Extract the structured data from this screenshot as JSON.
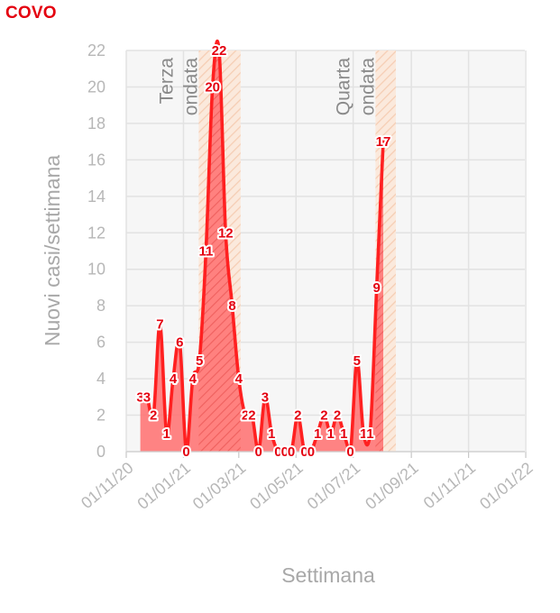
{
  "chart_data": {
    "type": "area",
    "title": "COVO",
    "xlabel": "Settimana",
    "ylabel": "Nuovi casi/settimana",
    "ylim": [
      0,
      22
    ],
    "yticks": [
      0,
      2,
      4,
      6,
      8,
      10,
      12,
      14,
      16,
      18,
      20,
      22
    ],
    "xlim": [
      "2020-11-01",
      "2021-12-31"
    ],
    "xticks": [
      {
        "date": "2020-11-01",
        "label": "01/11/20"
      },
      {
        "date": "2021-01-01",
        "label": "01/01/21"
      },
      {
        "date": "2021-03-01",
        "label": "01/03/21"
      },
      {
        "date": "2021-05-01",
        "label": "01/05/21"
      },
      {
        "date": "2021-07-01",
        "label": "01/07/21"
      },
      {
        "date": "2021-09-01",
        "label": "01/09/21"
      },
      {
        "date": "2021-11-01",
        "label": "01/11/21"
      },
      {
        "date": "2022-01-01",
        "label": "01/01/22"
      }
    ],
    "grid": true,
    "series": [
      {
        "points": [
          {
            "date": "2020-11-16",
            "value": 3
          },
          {
            "date": "2020-11-23",
            "value": 3
          },
          {
            "date": "2020-11-30",
            "value": 2
          },
          {
            "date": "2020-12-07",
            "value": 7
          },
          {
            "date": "2020-12-14",
            "value": 1
          },
          {
            "date": "2020-12-21",
            "value": 4
          },
          {
            "date": "2020-12-28",
            "value": 6
          },
          {
            "date": "2021-01-04",
            "value": 0
          },
          {
            "date": "2021-01-11",
            "value": 4
          },
          {
            "date": "2021-01-18",
            "value": 5
          },
          {
            "date": "2021-01-25",
            "value": 11
          },
          {
            "date": "2021-02-01",
            "value": 20
          },
          {
            "date": "2021-02-08",
            "value": 22
          },
          {
            "date": "2021-02-15",
            "value": 12
          },
          {
            "date": "2021-02-22",
            "value": 8
          },
          {
            "date": "2021-03-01",
            "value": 4
          },
          {
            "date": "2021-03-08",
            "value": 2
          },
          {
            "date": "2021-03-15",
            "value": 2
          },
          {
            "date": "2021-03-22",
            "value": 0
          },
          {
            "date": "2021-03-29",
            "value": 3
          },
          {
            "date": "2021-04-05",
            "value": 1
          },
          {
            "date": "2021-04-12",
            "value": 0
          },
          {
            "date": "2021-04-19",
            "value": 0
          },
          {
            "date": "2021-04-26",
            "value": 0
          },
          {
            "date": "2021-05-03",
            "value": 2
          },
          {
            "date": "2021-05-10",
            "value": 0
          },
          {
            "date": "2021-05-17",
            "value": 0
          },
          {
            "date": "2021-05-24",
            "value": 1
          },
          {
            "date": "2021-05-31",
            "value": 2
          },
          {
            "date": "2021-06-07",
            "value": 1
          },
          {
            "date": "2021-06-14",
            "value": 2
          },
          {
            "date": "2021-06-21",
            "value": 1
          },
          {
            "date": "2021-06-28",
            "value": 0
          },
          {
            "date": "2021-07-05",
            "value": 5
          },
          {
            "date": "2021-07-12",
            "value": 1
          },
          {
            "date": "2021-07-19",
            "value": 1
          },
          {
            "date": "2021-07-26",
            "value": 9
          },
          {
            "date": "2021-08-02",
            "value": 17
          }
        ]
      }
    ],
    "annotations": [
      {
        "lines": [
          "Terza",
          "ondata"
        ]
      },
      {
        "lines": [
          "Quarta",
          "ondata"
        ]
      }
    ],
    "colors": {
      "line": "#ff2020",
      "fill": "#ff6f6f",
      "plot_background": "#f6f6f6",
      "wave_shade": "#f6dfcf",
      "title": "#e4000f"
    }
  }
}
